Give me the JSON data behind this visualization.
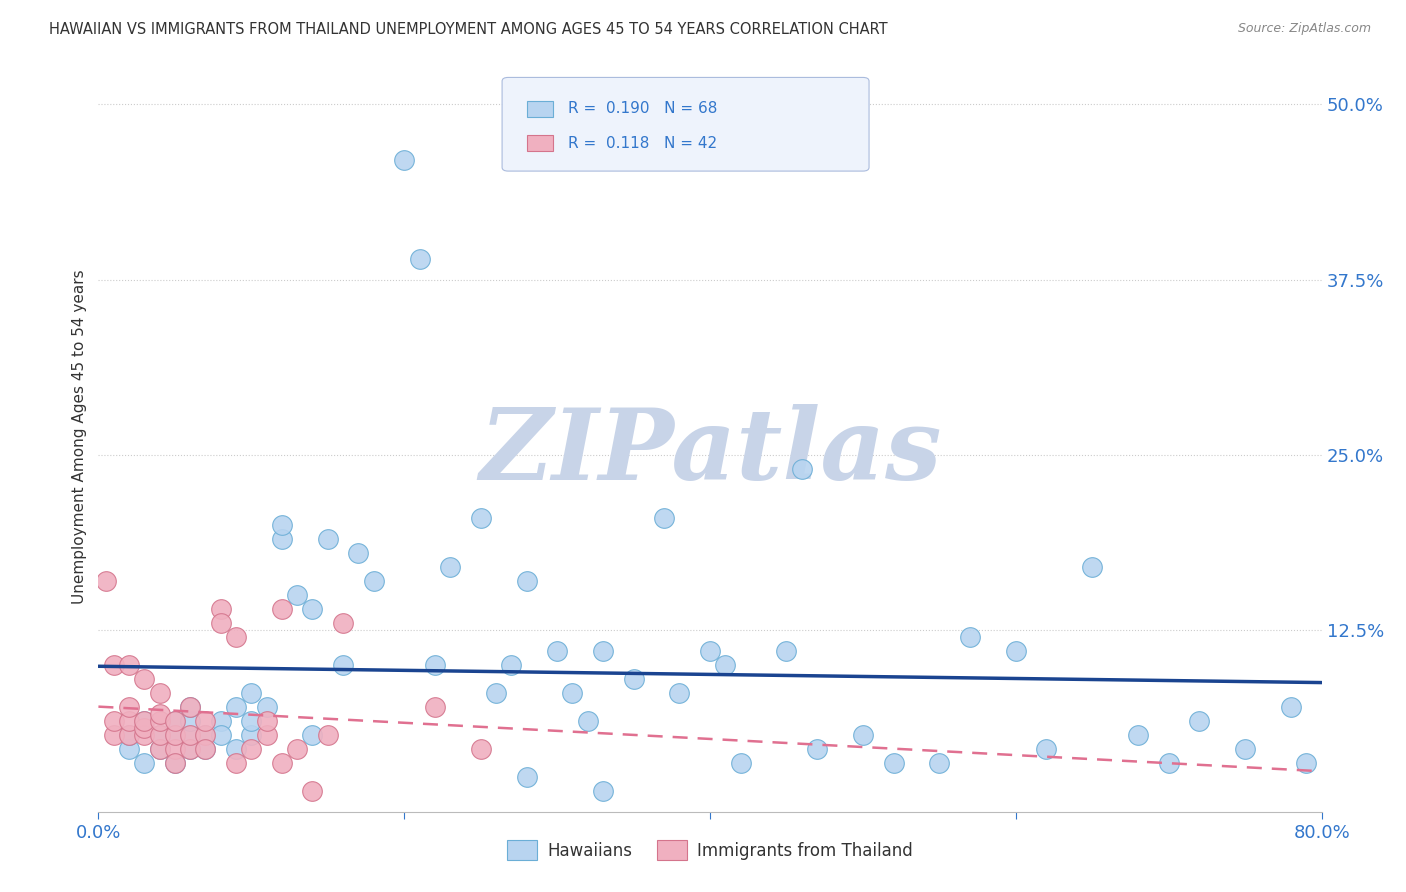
{
  "title": "HAWAIIAN VS IMMIGRANTS FROM THAILAND UNEMPLOYMENT AMONG AGES 45 TO 54 YEARS CORRELATION CHART",
  "source": "Source: ZipAtlas.com",
  "ylabel": "Unemployment Among Ages 45 to 54 years",
  "xlim": [
    0.0,
    0.8
  ],
  "ylim": [
    -0.005,
    0.53
  ],
  "yticks_right": [
    0.125,
    0.25,
    0.375,
    0.5
  ],
  "yticklabels_right": [
    "12.5%",
    "25.0%",
    "37.5%",
    "50.0%"
  ],
  "hawaiians_color": "#b8d4f0",
  "hawaiians_edge": "#6baed6",
  "thailand_color": "#f0b0c0",
  "thailand_edge": "#d4748c",
  "watermark": "ZIPatlas",
  "watermark_color_zip": "#c8d8ec",
  "watermark_color_atlas": "#c8d8c8",
  "background_color": "#ffffff",
  "hawaiians_x": [
    0.02,
    0.02,
    0.03,
    0.03,
    0.04,
    0.04,
    0.05,
    0.05,
    0.05,
    0.06,
    0.06,
    0.06,
    0.06,
    0.07,
    0.07,
    0.08,
    0.08,
    0.09,
    0.09,
    0.1,
    0.1,
    0.1,
    0.11,
    0.12,
    0.12,
    0.13,
    0.14,
    0.14,
    0.15,
    0.16,
    0.17,
    0.18,
    0.2,
    0.21,
    0.22,
    0.23,
    0.25,
    0.26,
    0.27,
    0.28,
    0.3,
    0.31,
    0.32,
    0.33,
    0.35,
    0.37,
    0.38,
    0.4,
    0.41,
    0.42,
    0.45,
    0.46,
    0.47,
    0.5,
    0.52,
    0.55,
    0.57,
    0.6,
    0.62,
    0.65,
    0.68,
    0.7,
    0.72,
    0.75,
    0.78,
    0.79,
    0.28,
    0.33
  ],
  "hawaiians_y": [
    0.04,
    0.05,
    0.03,
    0.06,
    0.04,
    0.05,
    0.03,
    0.05,
    0.06,
    0.04,
    0.05,
    0.06,
    0.07,
    0.05,
    0.04,
    0.06,
    0.05,
    0.04,
    0.07,
    0.05,
    0.06,
    0.08,
    0.07,
    0.19,
    0.2,
    0.15,
    0.14,
    0.05,
    0.19,
    0.1,
    0.18,
    0.16,
    0.46,
    0.39,
    0.1,
    0.17,
    0.205,
    0.08,
    0.1,
    0.16,
    0.11,
    0.08,
    0.06,
    0.11,
    0.09,
    0.205,
    0.08,
    0.11,
    0.1,
    0.03,
    0.11,
    0.24,
    0.04,
    0.05,
    0.03,
    0.03,
    0.12,
    0.11,
    0.04,
    0.17,
    0.05,
    0.03,
    0.06,
    0.04,
    0.07,
    0.03,
    0.02,
    0.01
  ],
  "thailand_x": [
    0.005,
    0.01,
    0.01,
    0.01,
    0.02,
    0.02,
    0.02,
    0.02,
    0.03,
    0.03,
    0.03,
    0.03,
    0.04,
    0.04,
    0.04,
    0.04,
    0.04,
    0.05,
    0.05,
    0.05,
    0.05,
    0.06,
    0.06,
    0.06,
    0.07,
    0.07,
    0.07,
    0.08,
    0.08,
    0.09,
    0.09,
    0.1,
    0.11,
    0.11,
    0.12,
    0.12,
    0.13,
    0.14,
    0.15,
    0.16,
    0.22,
    0.25
  ],
  "thailand_y": [
    0.16,
    0.05,
    0.06,
    0.1,
    0.05,
    0.06,
    0.07,
    0.1,
    0.05,
    0.055,
    0.06,
    0.09,
    0.04,
    0.05,
    0.06,
    0.065,
    0.08,
    0.04,
    0.05,
    0.06,
    0.03,
    0.04,
    0.05,
    0.07,
    0.05,
    0.06,
    0.04,
    0.14,
    0.13,
    0.12,
    0.03,
    0.04,
    0.05,
    0.06,
    0.03,
    0.14,
    0.04,
    0.01,
    0.05,
    0.13,
    0.07,
    0.04
  ],
  "grid_color": "#cccccc",
  "blue_line_color": "#1a4490",
  "pink_line_color": "#e07090",
  "R_hawaiians": 0.19,
  "N_hawaiians": 68,
  "R_thailand": 0.118,
  "N_thailand": 42,
  "legend_box_color": "#eef3fc",
  "legend_border_color": "#aabbdd",
  "tick_color": "#3377cc",
  "title_color": "#333333",
  "ylabel_color": "#333333",
  "source_color": "#888888"
}
